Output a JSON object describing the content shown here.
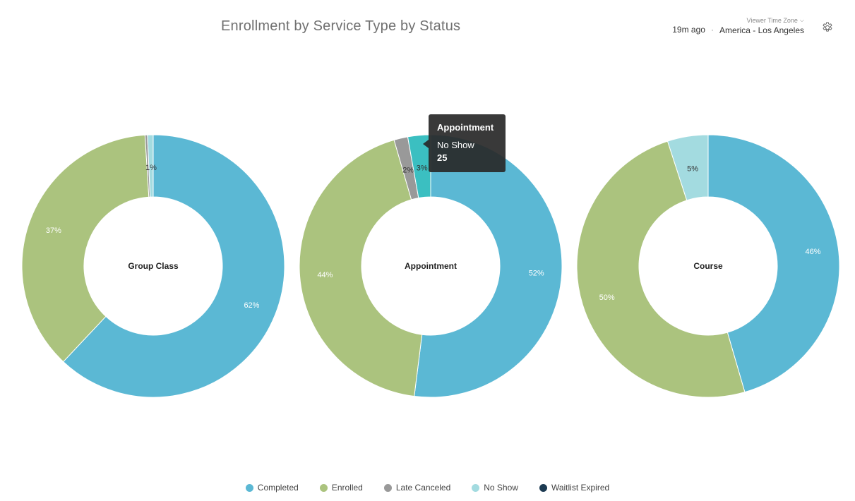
{
  "header": {
    "title": "Enrollment by Service Type by Status",
    "updated": "19m ago",
    "separator": "·",
    "tz_label": "Viewer Time Zone",
    "tz_value": "America - Los Angeles",
    "settings_icon": "gear-icon"
  },
  "colors": {
    "Completed": "#5bb8d4",
    "Enrolled": "#abc37e",
    "Late Canceled": "#999999",
    "No Show": "#a3dbe0",
    "No Show Hover": "#3bbfc1",
    "Waitlist Expired": "#1c3a52"
  },
  "legend": [
    "Completed",
    "Enrolled",
    "Late Canceled",
    "No Show",
    "Waitlist Expired"
  ],
  "tooltip": {
    "title": "Appointment",
    "series": "No Show",
    "value": "25"
  },
  "chart_data": [
    {
      "type": "pie",
      "title": "Group Class",
      "slices": [
        {
          "name": "Completed",
          "percent": 62,
          "label": "62%"
        },
        {
          "name": "Enrolled",
          "percent": 37,
          "label": "37%"
        },
        {
          "name": "Late Canceled",
          "percent": 0.3,
          "label": ""
        },
        {
          "name": "No Show",
          "percent": 0.7,
          "label": "1%"
        }
      ]
    },
    {
      "type": "pie",
      "title": "Appointment",
      "slices": [
        {
          "name": "Completed",
          "percent": 52,
          "label": "52%"
        },
        {
          "name": "Enrolled",
          "percent": 43.5,
          "label": "44%"
        },
        {
          "name": "Late Canceled",
          "percent": 1.7,
          "label": "2%"
        },
        {
          "name": "No Show",
          "percent": 2.8,
          "label": "3%",
          "highlight": true
        }
      ]
    },
    {
      "type": "pie",
      "title": "Course",
      "slices": [
        {
          "name": "Completed",
          "percent": 45.5,
          "label": "46%"
        },
        {
          "name": "Enrolled",
          "percent": 49.5,
          "label": "50%"
        },
        {
          "name": "No Show",
          "percent": 5,
          "label": "5%"
        }
      ]
    }
  ]
}
